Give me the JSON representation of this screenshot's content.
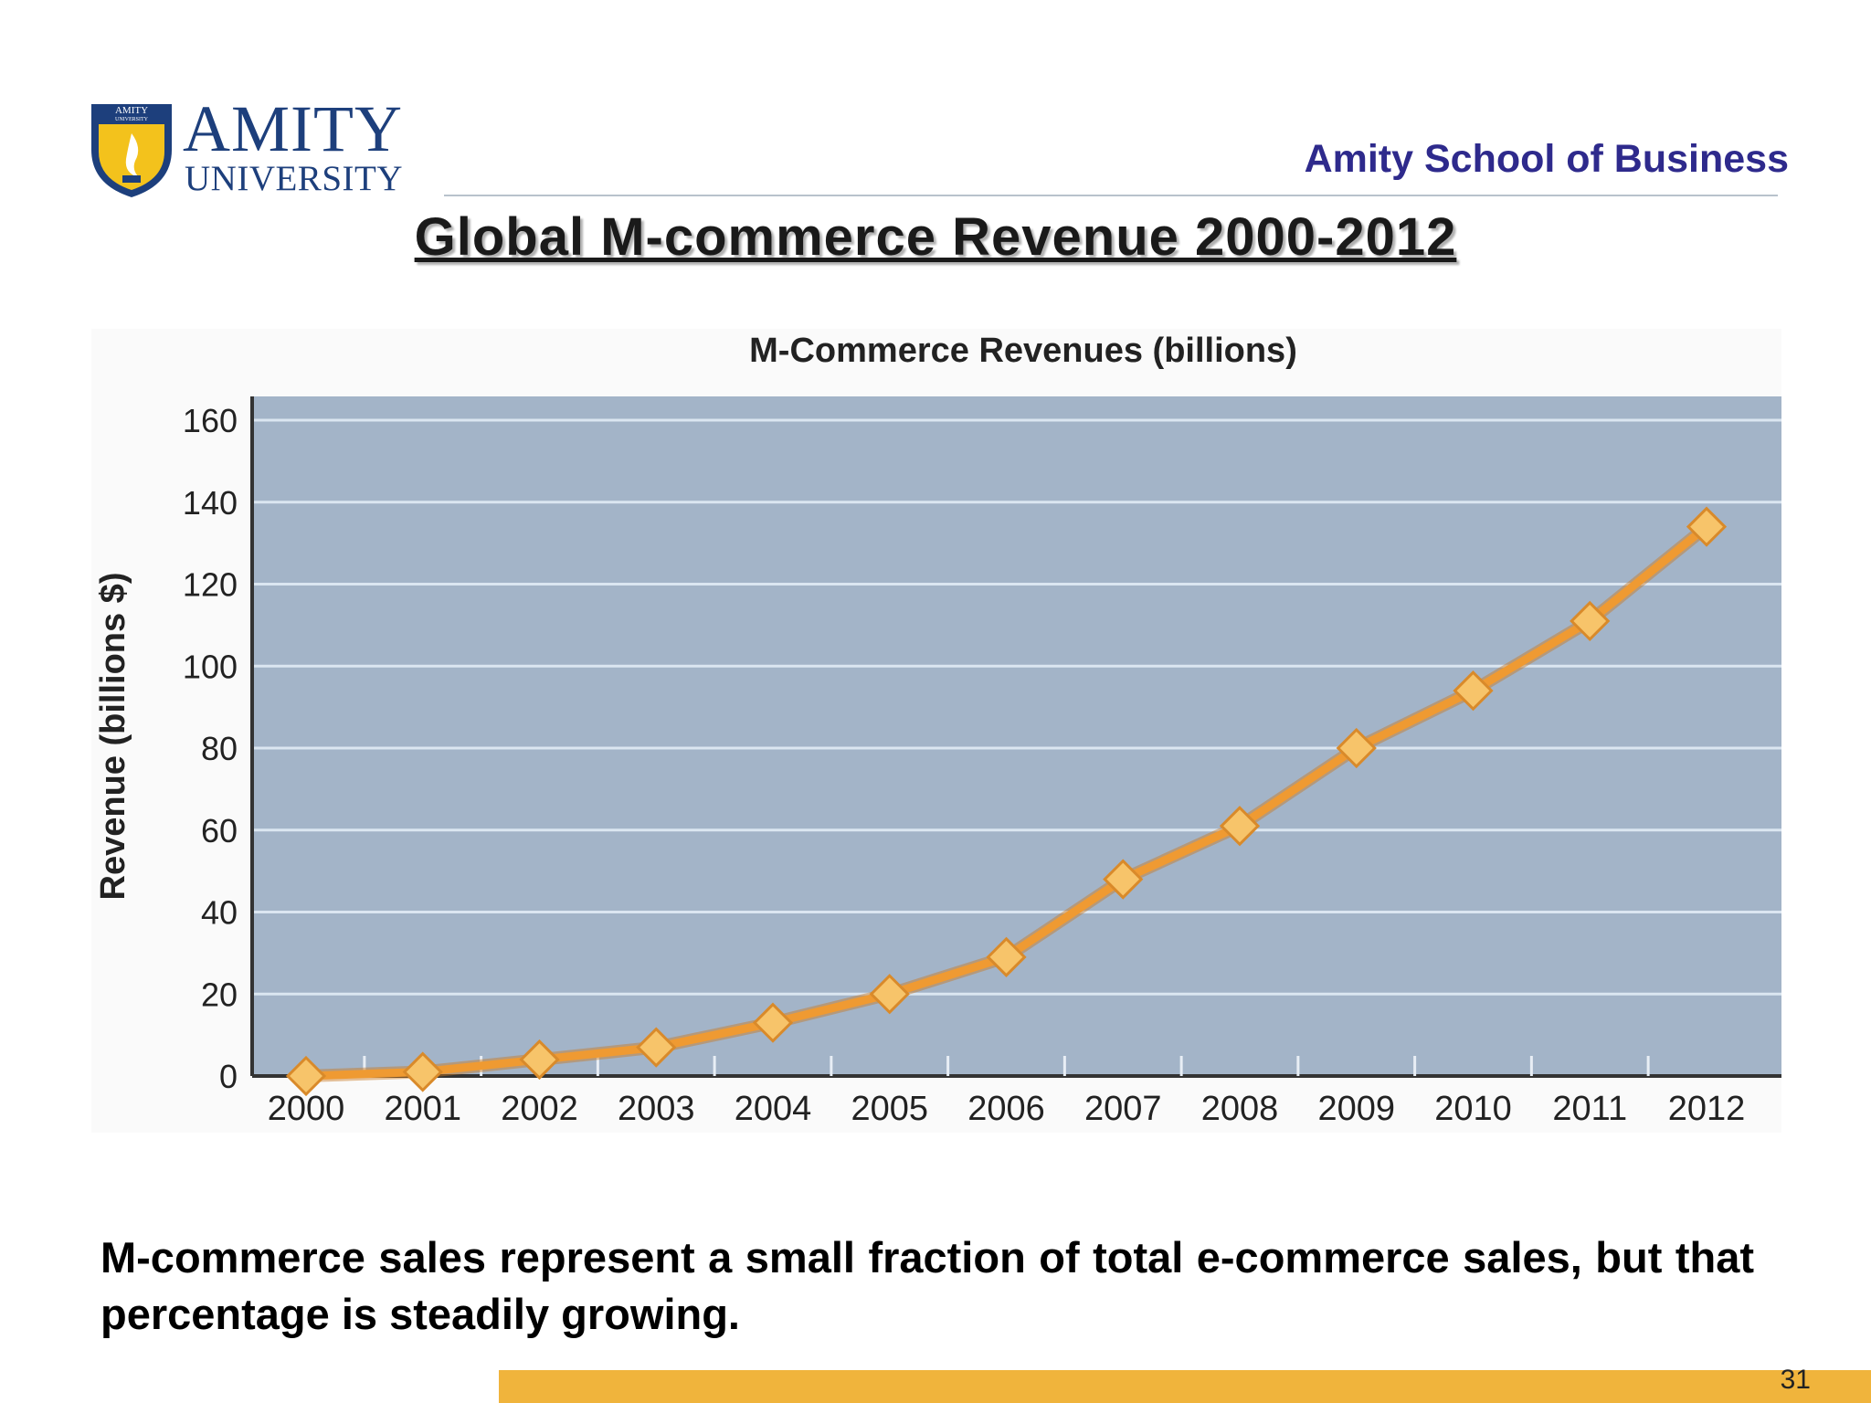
{
  "header": {
    "logo_word": "AMITY",
    "logo_sub": "UNIVERSITY",
    "shield_text": "AMITY",
    "shield_subtext": "UNIVERSITY",
    "school_name": "Amity School of Business"
  },
  "slide": {
    "title": "Global M-commerce Revenue 2000-2012",
    "note": "M-commerce sales represent a small fraction of total e-commerce sales, but that percentage is steadily growing.",
    "page_number": "31"
  },
  "colors": {
    "plot_bg": "#a3b4c8",
    "gridline": "#dbe6f1",
    "line": "#ef9a32",
    "marker": "#f7c46a",
    "accent_bar": "#f0b43c",
    "school_text": "#2e2a8c"
  },
  "chart_data": {
    "type": "line",
    "title": "M-Commerce Revenues (billions)",
    "xlabel": "",
    "ylabel": "Revenue (billions $)",
    "categories": [
      "2000",
      "2001",
      "2002",
      "2003",
      "2004",
      "2005",
      "2006",
      "2007",
      "2008",
      "2009",
      "2010",
      "2011",
      "2012"
    ],
    "series": [
      {
        "values": [
          0,
          1,
          4,
          7,
          13,
          20,
          29,
          48,
          61,
          80,
          94,
          111,
          134
        ]
      }
    ],
    "ylim": [
      0,
      160
    ],
    "yticks": [
      0,
      20,
      40,
      60,
      80,
      100,
      120,
      140,
      160
    ],
    "grid": true,
    "legend": "none",
    "marker": "diamond"
  }
}
